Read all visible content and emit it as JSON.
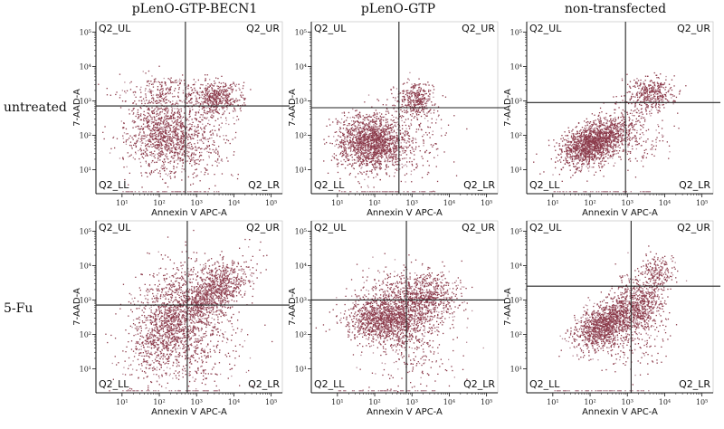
{
  "column_titles": [
    "pLenO-GTP-BECN1",
    "pLenO-GTP",
    "non-transfected"
  ],
  "row_labels": [
    "untreated",
    "5-Fu"
  ],
  "colors": {
    "dot": "#8b3a4a",
    "dot_light": "#b78a97",
    "axis": "#111111",
    "gate": "#222222"
  },
  "chart_data": [
    {
      "type": "scatter",
      "id": "p11",
      "row": "untreated",
      "column": "pLenO-GTP-BECN1",
      "xlabel": "Annexin V APC-A",
      "ylabel": "7-AAD-A",
      "xlim": [
        0.3,
        5.3
      ],
      "ylim": [
        0.3,
        5.3
      ],
      "x_ticks": [
        "10¹",
        "10²",
        "10³",
        "10⁴",
        "10⁵"
      ],
      "y_ticks": [
        "10¹",
        "10²",
        "10³",
        "10⁴",
        "10⁵"
      ],
      "gate": {
        "x": 2.7,
        "y": 2.85
      },
      "quadrants": [
        "Q2_UL",
        "Q2_UR",
        "Q2_LL",
        "Q2_LR"
      ],
      "clusters": [
        {
          "cx": 2.1,
          "cy": 2.1,
          "sx": 0.5,
          "sy": 0.6,
          "n": 1200
        },
        {
          "cx": 3.5,
          "cy": 3.1,
          "sx": 0.35,
          "sy": 0.25,
          "n": 500
        },
        {
          "cx": 3.1,
          "cy": 1.8,
          "sx": 0.45,
          "sy": 0.6,
          "n": 250
        },
        {
          "cx": 2.0,
          "cy": 3.3,
          "sx": 0.7,
          "sy": 0.25,
          "n": 150
        }
      ]
    },
    {
      "type": "scatter",
      "id": "p12",
      "row": "untreated",
      "column": "pLenO-GTP",
      "xlabel": "Annexin V APC-A",
      "ylabel": "7-AAD-A",
      "xlim": [
        0.3,
        5.3
      ],
      "ylim": [
        0.3,
        5.3
      ],
      "x_ticks": [
        "10¹",
        "10²",
        "10³",
        "10⁴",
        "10⁵"
      ],
      "y_ticks": [
        "10¹",
        "10²",
        "10³",
        "10⁴",
        "10⁵"
      ],
      "gate": {
        "x": 2.65,
        "y": 2.8
      },
      "quadrants": [
        "Q2_UL",
        "Q2_UR",
        "Q2_LL",
        "Q2_LR"
      ],
      "clusters": [
        {
          "cx": 1.9,
          "cy": 1.8,
          "sx": 0.45,
          "sy": 0.4,
          "n": 1700
        },
        {
          "cx": 3.1,
          "cy": 3.05,
          "sx": 0.25,
          "sy": 0.25,
          "n": 350
        },
        {
          "cx": 3.0,
          "cy": 1.9,
          "sx": 0.5,
          "sy": 0.6,
          "n": 200
        }
      ]
    },
    {
      "type": "scatter",
      "id": "p13",
      "row": "untreated",
      "column": "non-transfected",
      "xlabel": "Annexin V APC-A",
      "ylabel": "7-AAD-A",
      "xlim": [
        0.3,
        5.3
      ],
      "ylim": [
        0.3,
        5.3
      ],
      "x_ticks": [
        "10¹",
        "10²",
        "10³",
        "10⁴",
        "10⁵"
      ],
      "y_ticks": [
        "10¹",
        "10²",
        "10³",
        "10⁴",
        "10⁵"
      ],
      "gate": {
        "x": 2.95,
        "y": 2.95
      },
      "quadrants": [
        "Q2_UL",
        "Q2_UR",
        "Q2_LL",
        "Q2_LR"
      ],
      "clusters": [
        {
          "cx": 2.1,
          "cy": 1.8,
          "sx": 0.45,
          "sy": 0.3,
          "n": 1700,
          "tilt": 0.4
        },
        {
          "cx": 3.6,
          "cy": 3.2,
          "sx": 0.3,
          "sy": 0.25,
          "n": 400
        },
        {
          "cx": 3.2,
          "cy": 2.0,
          "sx": 0.4,
          "sy": 0.5,
          "n": 200
        }
      ]
    },
    {
      "type": "scatter",
      "id": "p21",
      "row": "5-Fu",
      "column": "pLenO-GTP-BECN1",
      "xlabel": "Annexin V APC-A",
      "ylabel": "7-AAD-A",
      "xlim": [
        0.3,
        5.3
      ],
      "ylim": [
        0.3,
        5.3
      ],
      "x_ticks": [
        "10¹",
        "10²",
        "10³",
        "10⁴",
        "10⁵"
      ],
      "y_ticks": [
        "10¹",
        "10²",
        "10³",
        "10⁴",
        "10⁵"
      ],
      "gate": {
        "x": 2.75,
        "y": 2.85
      },
      "quadrants": [
        "Q2_UL",
        "Q2_UR",
        "Q2_LL",
        "Q2_LR"
      ],
      "clusters": [
        {
          "cx": 2.3,
          "cy": 2.4,
          "sx": 0.55,
          "sy": 0.75,
          "n": 1500,
          "tilt": 0.5
        },
        {
          "cx": 3.5,
          "cy": 3.3,
          "sx": 0.45,
          "sy": 0.35,
          "n": 900,
          "tilt": 0.5
        },
        {
          "cx": 3.2,
          "cy": 1.8,
          "sx": 0.6,
          "sy": 0.7,
          "n": 350
        }
      ]
    },
    {
      "type": "scatter",
      "id": "p22",
      "row": "5-Fu",
      "column": "pLenO-GTP",
      "xlabel": "Annexin V APC-A",
      "ylabel": "7-AAD-A",
      "xlim": [
        0.3,
        5.3
      ],
      "ylim": [
        0.3,
        5.3
      ],
      "x_ticks": [
        "10¹",
        "10²",
        "10³",
        "10⁴",
        "10⁵"
      ],
      "y_ticks": [
        "10¹",
        "10²",
        "10³",
        "10⁴",
        "10⁵"
      ],
      "gate": {
        "x": 2.85,
        "y": 3.0
      },
      "quadrants": [
        "Q2_UL",
        "Q2_UR",
        "Q2_LL",
        "Q2_LR"
      ],
      "clusters": [
        {
          "cx": 2.3,
          "cy": 2.45,
          "sx": 0.5,
          "sy": 0.35,
          "n": 1400
        },
        {
          "cx": 3.3,
          "cy": 3.1,
          "sx": 0.45,
          "sy": 0.35,
          "n": 700
        },
        {
          "cx": 3.0,
          "cy": 1.8,
          "sx": 0.6,
          "sy": 0.8,
          "n": 300
        },
        {
          "cx": 2.6,
          "cy": 3.4,
          "sx": 0.6,
          "sy": 0.3,
          "n": 150
        }
      ]
    },
    {
      "type": "scatter",
      "id": "p23",
      "row": "5-Fu",
      "column": "non-transfected",
      "xlabel": "Annexin V APC-A",
      "ylabel": "7-AAD-A",
      "xlim": [
        0.3,
        5.3
      ],
      "ylim": [
        0.3,
        5.3
      ],
      "x_ticks": [
        "10¹",
        "10²",
        "10³",
        "10⁴",
        "10⁵"
      ],
      "y_ticks": [
        "10¹",
        "10²",
        "10³",
        "10⁴",
        "10⁵"
      ],
      "gate": {
        "x": 3.1,
        "y": 3.4
      },
      "quadrants": [
        "Q2_UL",
        "Q2_UR",
        "Q2_LL",
        "Q2_LR"
      ],
      "clusters": [
        {
          "cx": 2.4,
          "cy": 2.3,
          "sx": 0.4,
          "sy": 0.3,
          "n": 1300,
          "tilt": 0.4
        },
        {
          "cx": 3.3,
          "cy": 2.9,
          "sx": 0.35,
          "sy": 0.4,
          "n": 600
        },
        {
          "cx": 3.8,
          "cy": 3.8,
          "sx": 0.25,
          "sy": 0.25,
          "n": 200
        },
        {
          "cx": 3.2,
          "cy": 1.8,
          "sx": 0.4,
          "sy": 0.5,
          "n": 150
        }
      ]
    }
  ]
}
